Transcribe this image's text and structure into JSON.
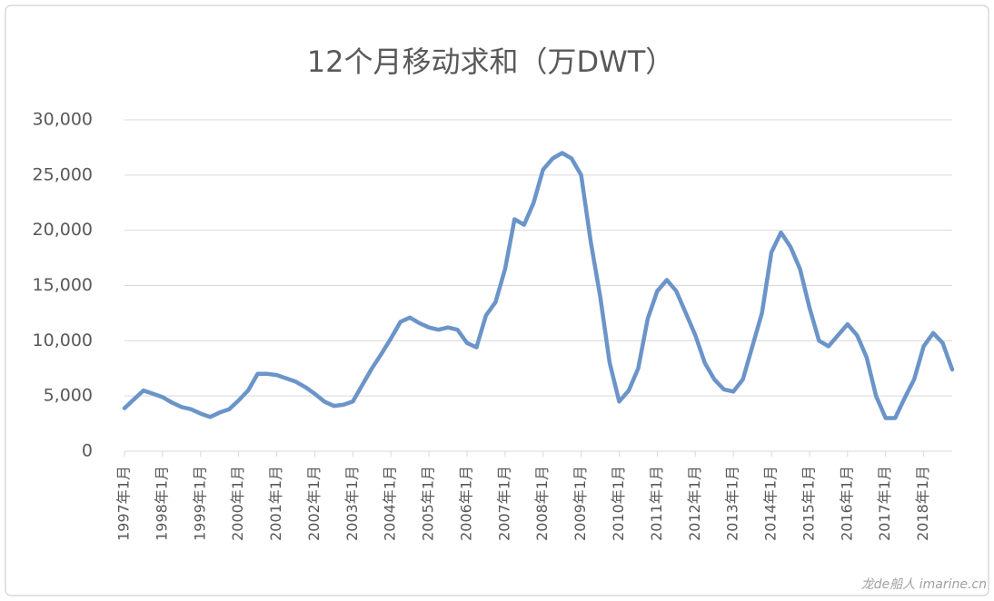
{
  "chart_data": {
    "type": "line",
    "title": "12个月移动求和（万DWT）",
    "watermark": "龙de船人 imarine.cn",
    "categories": [
      "1997年1月",
      null,
      null,
      null,
      "1998年1月",
      null,
      null,
      null,
      "1999年1月",
      null,
      null,
      null,
      "2000年1月",
      null,
      null,
      null,
      "2001年1月",
      null,
      null,
      null,
      "2002年1月",
      null,
      null,
      null,
      "2003年1月",
      null,
      null,
      null,
      "2004年1月",
      null,
      null,
      null,
      "2005年1月",
      null,
      null,
      null,
      "2006年1月",
      null,
      null,
      null,
      "2007年1月",
      null,
      null,
      null,
      "2008年1月",
      null,
      null,
      null,
      "2009年1月",
      null,
      null,
      null,
      "2010年1月",
      null,
      null,
      null,
      "2011年1月",
      null,
      null,
      null,
      "2012年1月",
      null,
      null,
      null,
      "2013年1月",
      null,
      null,
      null,
      "2014年1月",
      null,
      null,
      null,
      "2015年1月",
      null,
      null,
      null,
      "2016年1月",
      null,
      null,
      null,
      "2017年1月",
      null,
      null,
      null,
      "2018年1月",
      null,
      null,
      null
    ],
    "series": [
      {
        "name": "12个月移动求和",
        "color": "#6b94c9",
        "values": [
          3900,
          4700,
          5500,
          5200,
          4900,
          4400,
          4000,
          3800,
          3400,
          3100,
          3500,
          3800,
          4600,
          5500,
          7000,
          7000,
          6900,
          6600,
          6300,
          5800,
          5200,
          4500,
          4100,
          4200,
          4500,
          6000,
          7500,
          8800,
          10200,
          11700,
          12100,
          11600,
          11200,
          11000,
          11200,
          11000,
          9800,
          9400,
          12300,
          13500,
          16500,
          21000,
          20500,
          22500,
          25500,
          26500,
          27000,
          26500,
          25000,
          19000,
          14000,
          8000,
          4500,
          5500,
          7500,
          12000,
          14500,
          15500,
          14500,
          12500,
          10500,
          8000,
          6500,
          5600,
          5400,
          6500,
          9500,
          12500,
          18000,
          19800,
          18500,
          16500,
          13000,
          10000,
          9500,
          10500,
          11500,
          10500,
          8500,
          5000,
          3000,
          3000,
          4800,
          6500,
          9500,
          10700,
          9800,
          7400
        ]
      }
    ],
    "ylim": [
      0,
      30000
    ],
    "yticks": [
      0,
      {
        "value": 5000,
        "label": "5,000"
      },
      {
        "value": 10000,
        "label": "10,000"
      },
      {
        "value": 15000,
        "label": "15,000"
      },
      {
        "value": 20000,
        "label": "20,000"
      },
      {
        "value": 25000,
        "label": "25,000"
      },
      {
        "value": 30000,
        "label": "30,000"
      }
    ],
    "grid": true
  }
}
